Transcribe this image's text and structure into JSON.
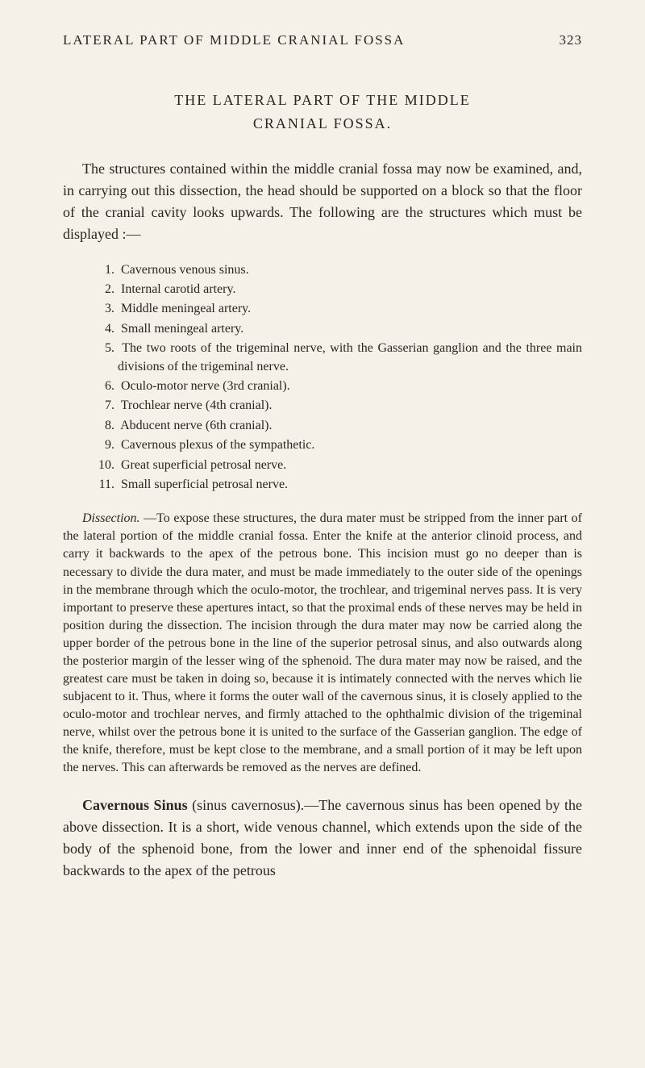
{
  "header": {
    "runningTitle": "LATERAL PART OF MIDDLE CRANIAL FOSSA",
    "pageNumber": "323"
  },
  "title": {
    "line1": "THE LATERAL PART OF THE MIDDLE",
    "line2": "CRANIAL FOSSA."
  },
  "intro": "The structures contained within the middle cranial fossa may now be examined, and, in carrying out this dissection, the head should be supported on a block so that the floor of the cranial cavity looks upwards. The following are the structures which must be displayed :—",
  "items": [
    {
      "num": "1.",
      "text": "Cavernous venous sinus."
    },
    {
      "num": "2.",
      "text": "Internal carotid artery."
    },
    {
      "num": "3.",
      "text": "Middle meningeal artery."
    },
    {
      "num": "4.",
      "text": "Small meningeal artery."
    },
    {
      "num": "5.",
      "text": "The two roots of the trigeminal nerve, with the Gasserian ganglion and the three main divisions of the trigeminal nerve."
    },
    {
      "num": "6.",
      "text": "Oculo-motor nerve (3rd cranial)."
    },
    {
      "num": "7.",
      "text": "Trochlear nerve (4th cranial)."
    },
    {
      "num": "8.",
      "text": "Abducent nerve (6th cranial)."
    },
    {
      "num": "9.",
      "text": "Cavernous plexus of the sympathetic."
    },
    {
      "num": "10.",
      "text": "Great superficial petrosal nerve."
    },
    {
      "num": "11.",
      "text": "Small superficial petrosal nerve."
    }
  ],
  "dissection": {
    "leadItalic": "Dissection.",
    "body": " —To expose these structures, the dura mater must be stripped from the inner part of the lateral portion of the middle cranial fossa. Enter the knife at the anterior clinoid process, and carry it backwards to the apex of the petrous bone. This incision must go no deeper than is necessary to divide the dura mater, and must be made immediately to the outer side of the openings in the membrane through which the oculo-motor, the trochlear, and trigeminal nerves pass. It is very important to preserve these apertures intact, so that the proximal ends of these nerves may be held in position during the dissection. The incision through the dura mater may now be carried along the upper border of the petrous bone in the line of the superior petrosal sinus, and also outwards along the posterior margin of the lesser wing of the sphenoid. The dura mater may now be raised, and the greatest care must be taken in doing so, because it is intimately connected with the nerves which lie subjacent to it. Thus, where it forms the outer wall of the cavernous sinus, it is closely applied to the oculo-motor and trochlear nerves, and firmly attached to the ophthalmic division of the trigeminal nerve, whilst over the petrous bone it is united to the surface of the Gasserian ganglion. The edge of the knife, therefore, must be kept close to the membrane, and a small portion of it may be left upon the nerves. This can afterwards be removed as the nerves are defined."
  },
  "cavernous": {
    "leadBold": "Cavernous Sinus",
    "body": " (sinus cavernosus).—The cavernous sinus has been opened by the above dissection. It is a short, wide venous channel, which extends upon the side of the body of the sphenoid bone, from the lower and inner end of the sphenoidal fissure backwards to the apex of the petrous"
  }
}
